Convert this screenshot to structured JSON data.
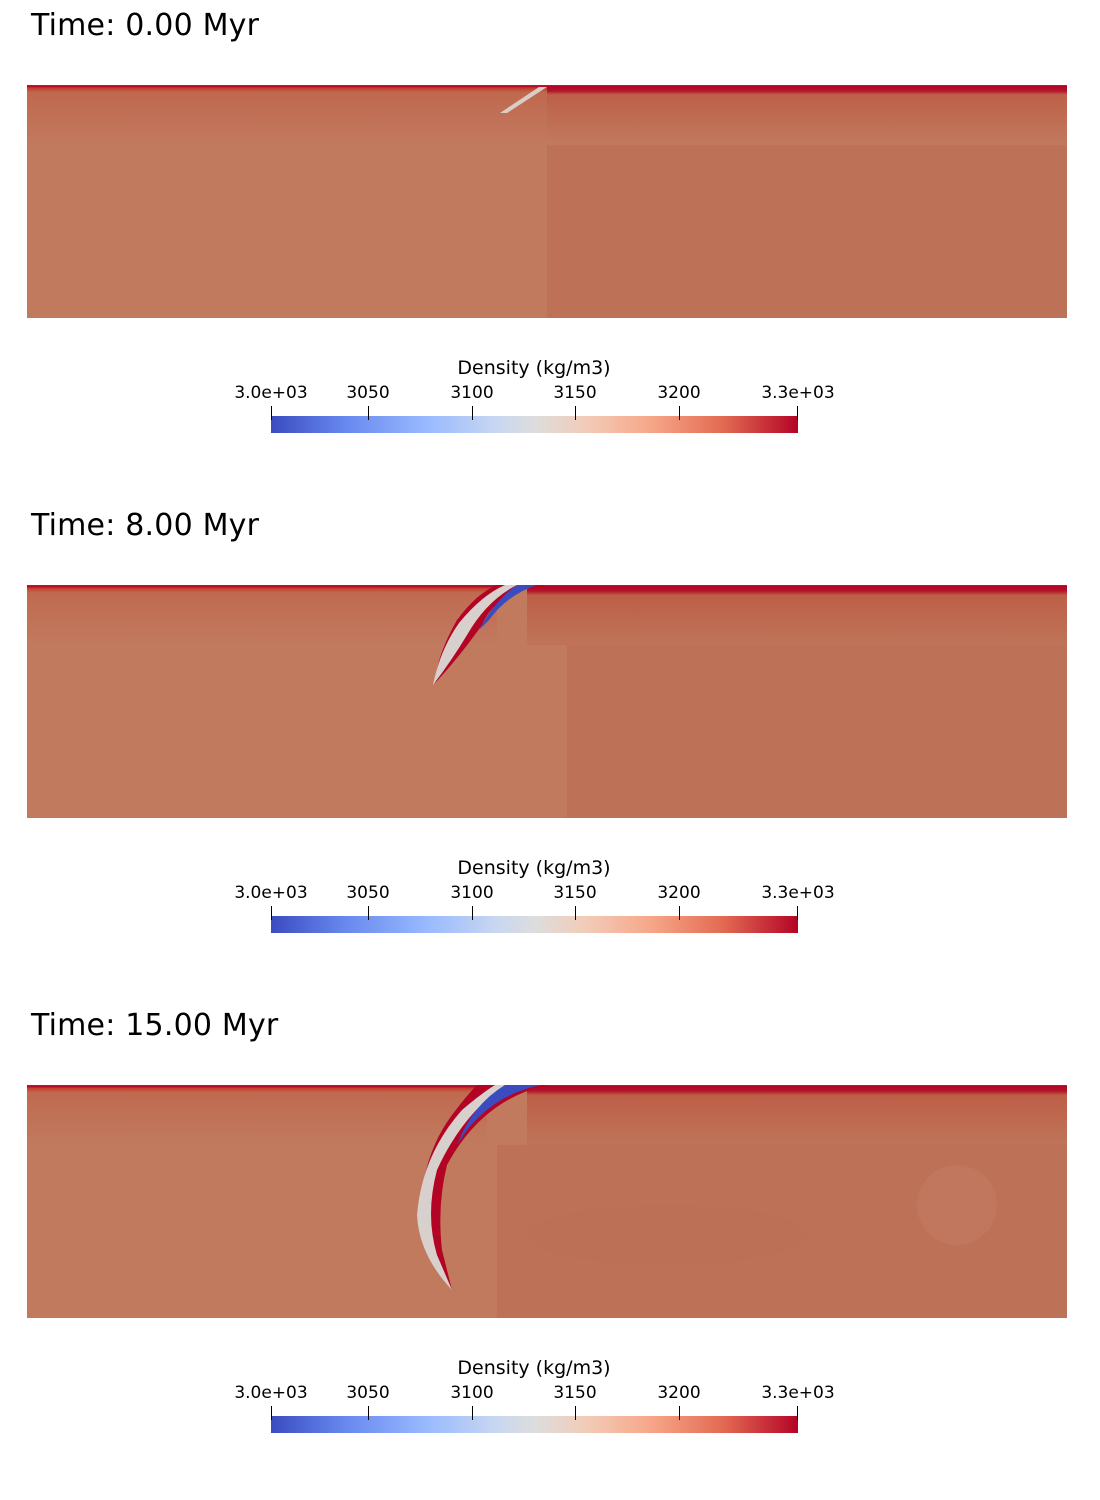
{
  "colorbar": {
    "title": "Density (kg/m3)",
    "ticks": [
      {
        "label": "3.0e+03",
        "value": 3000
      },
      {
        "label": "3050",
        "value": 3050
      },
      {
        "label": "3100",
        "value": 3100
      },
      {
        "label": "3150",
        "value": 3150
      },
      {
        "label": "3200",
        "value": 3200
      },
      {
        "label": "3.3e+03",
        "value": 3300
      }
    ],
    "range": [
      3000,
      3300
    ],
    "colormap": [
      "#3b4cc0",
      "#dddddd",
      "#b40426"
    ]
  },
  "panels": [
    {
      "time_label": "Time: 0.00 Myr",
      "time_myr": 0.0
    },
    {
      "time_label": "Time: 8.00 Myr",
      "time_myr": 8.0
    },
    {
      "time_label": "Time: 15.00 Myr",
      "time_myr": 15.0
    }
  ],
  "colors": {
    "mantle": "#bf7158",
    "lithosphere_dense": "#b40426",
    "crust_light": "#3b4cc0",
    "weak_zone": "#d8d0cc"
  }
}
